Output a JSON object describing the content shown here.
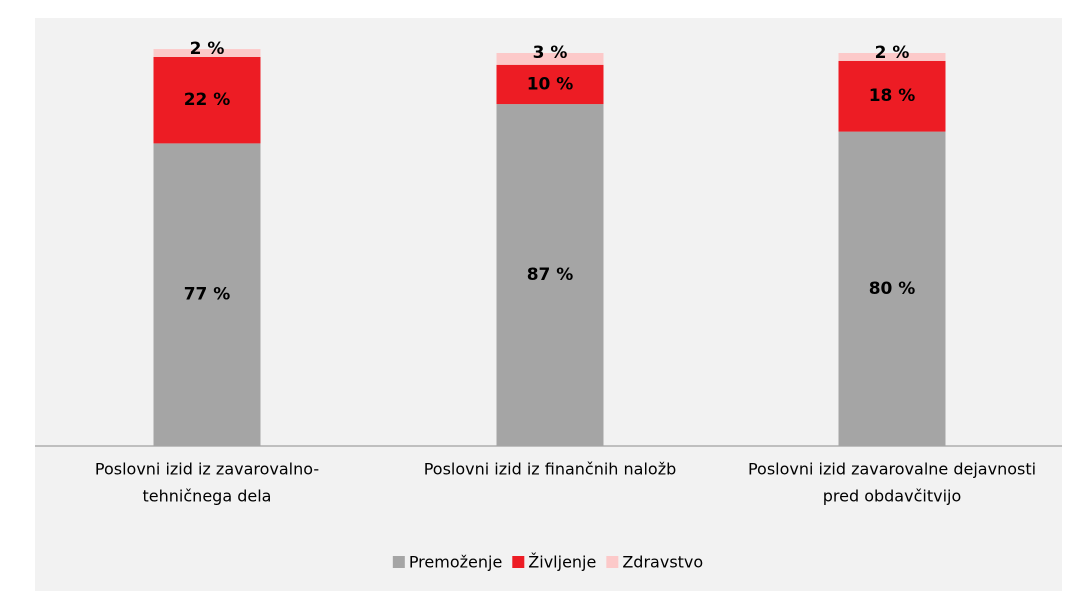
{
  "chart_data": {
    "type": "stacked_bar",
    "categories": [
      [
        "Poslovni izid iz zavarovalno-",
        "tehničnega dela"
      ],
      [
        "Poslovni izid iz finančnih naložb"
      ],
      [
        "Poslovni izid zavarovalne dejavnosti",
        "pred obdavčitvijo"
      ]
    ],
    "series": [
      {
        "name": "Premoženje",
        "color": "#a5a5a5",
        "values": [
          77,
          87,
          80
        ],
        "value_labels": [
          "77 %",
          "87 %",
          "80 %"
        ]
      },
      {
        "name": "Življenje",
        "color": "#ed1c24",
        "values": [
          22,
          10,
          18
        ],
        "value_labels": [
          "22 %",
          "10 %",
          "18 %"
        ]
      },
      {
        "name": "Zdravstvo",
        "color": "#fcc9c9",
        "values": [
          2,
          3,
          2
        ],
        "value_labels": [
          "2 %",
          "3 %",
          "2 %"
        ]
      }
    ],
    "ylim": [
      0,
      100
    ],
    "legend": "bottom"
  }
}
